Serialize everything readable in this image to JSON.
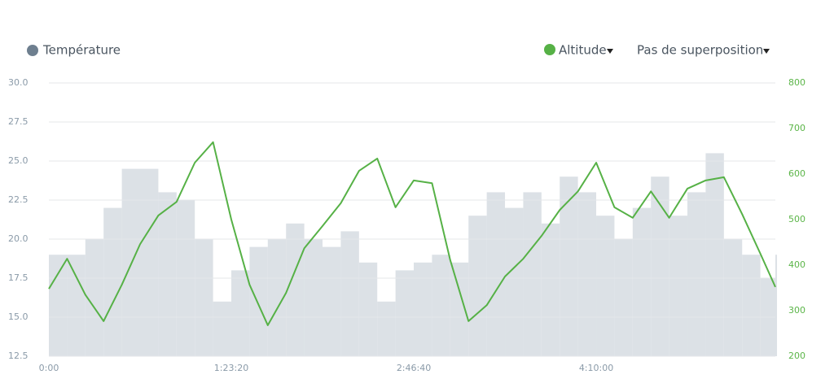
{
  "chart_data": {
    "type": "area-line",
    "legend": [
      "Température",
      "Altitude",
      "Pas de superposition"
    ],
    "x": [
      0,
      500,
      1000,
      1500,
      2000,
      2500,
      3000,
      3500,
      4000,
      4500,
      5000,
      5500,
      6000,
      6500,
      7000,
      7500,
      8000,
      8500,
      9000,
      9500,
      10000,
      10500,
      11000,
      11500,
      12000,
      12500,
      13000,
      13500,
      14000,
      14500,
      15000,
      15500,
      16000,
      16500,
      17000,
      17500,
      18000,
      18500,
      19000,
      19500,
      19910
    ],
    "xlim": [
      0,
      19910
    ],
    "xticks": [
      {
        "value": 0,
        "label": "0:00"
      },
      {
        "value": 5000,
        "label": "1:23:20"
      },
      {
        "value": 10000,
        "label": "2:46:40"
      },
      {
        "value": 15000,
        "label": "4:10:00"
      }
    ],
    "ylim": [
      12.5,
      30
    ],
    "yticks": [
      12.5,
      {
        "value": 15,
        "label": "15.0"
      },
      17.5,
      {
        "value": 20,
        "label": "20.0"
      },
      22.5,
      {
        "value": 25,
        "label": "25.0"
      },
      27.5,
      {
        "value": 30,
        "label": "30.0"
      }
    ],
    "y2lim": [
      200,
      800
    ],
    "y2ticks": [
      200,
      300,
      400,
      500,
      600,
      700,
      800
    ],
    "grid": true,
    "series": [
      {
        "name": "Température",
        "color": "#dce1e6",
        "marker_color": "#6e7f8f",
        "step": true,
        "values": [
          19,
          19,
          20,
          22,
          24.5,
          24.5,
          23,
          22.5,
          20,
          16,
          18,
          19.5,
          20,
          21,
          20,
          19.5,
          20.5,
          18.5,
          16,
          18,
          18.5,
          19,
          18.5,
          21.5,
          23,
          22,
          23,
          21,
          24,
          23,
          21.5,
          20,
          22,
          24,
          21.5,
          23,
          25.5,
          20,
          19,
          17.5,
          19
        ]
      },
      {
        "name": "Altitude",
        "color": "#56b146",
        "axis": "y2",
        "values": [
          348,
          414,
          335,
          277,
          357,
          446,
          509,
          539,
          625,
          670,
          500,
          357,
          268,
          339,
          437,
          486,
          536,
          607,
          634,
          527,
          586,
          580,
          411,
          277,
          312,
          375,
          414,
          464,
          521,
          562,
          625,
          527,
          504,
          562,
          504,
          568,
          586,
          593,
          512,
          425,
          352
        ]
      }
    ]
  }
}
